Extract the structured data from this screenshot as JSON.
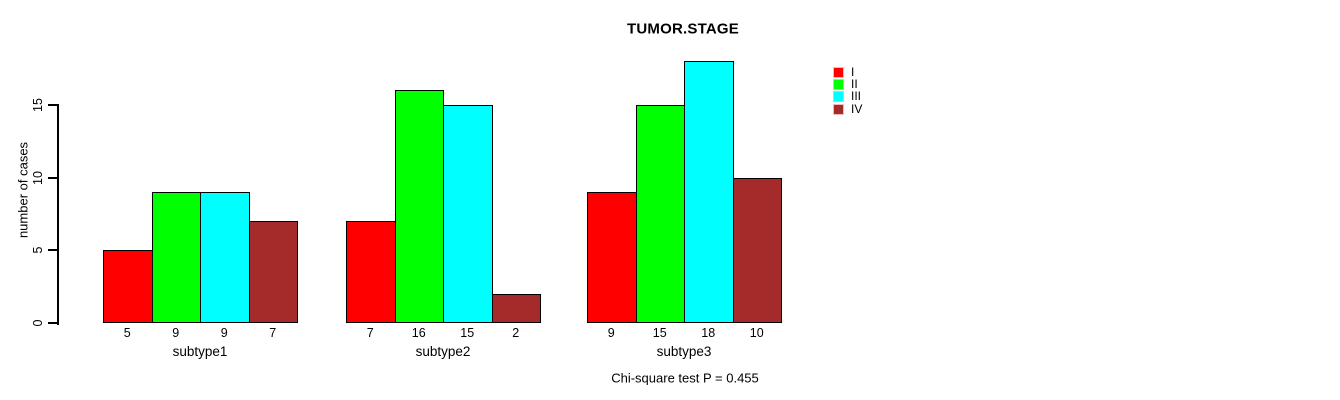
{
  "title": "TUMOR.STAGE",
  "ylabel": "number of cases",
  "footer_annotation": "Chi-square test P = 0.455",
  "legend": {
    "items": [
      {
        "label": "I",
        "color": "#FF0000"
      },
      {
        "label": "II",
        "color": "#00FF00"
      },
      {
        "label": "III",
        "color": "#00FFFF"
      },
      {
        "label": "IV",
        "color": "#A52A2A"
      }
    ]
  },
  "chart_data": {
    "type": "bar",
    "title": "TUMOR.STAGE",
    "xlabel": "",
    "ylabel": "number of cases",
    "categories": [
      "subtype1",
      "subtype2",
      "subtype3"
    ],
    "series": [
      {
        "name": "I",
        "color": "#FF0000",
        "values": [
          5,
          7,
          9
        ]
      },
      {
        "name": "II",
        "color": "#00FF00",
        "values": [
          9,
          16,
          15
        ]
      },
      {
        "name": "III",
        "color": "#00FFFF",
        "values": [
          9,
          15,
          18
        ]
      },
      {
        "name": "IV",
        "color": "#A52A2A",
        "values": [
          7,
          2,
          10
        ]
      }
    ],
    "yticks": [
      0,
      5,
      10,
      15
    ],
    "ylim": [
      0,
      18.7
    ],
    "grid": false,
    "legend_position": "top-right",
    "bar_value_labels": true,
    "annotation": "Chi-square test P = 0.455"
  }
}
